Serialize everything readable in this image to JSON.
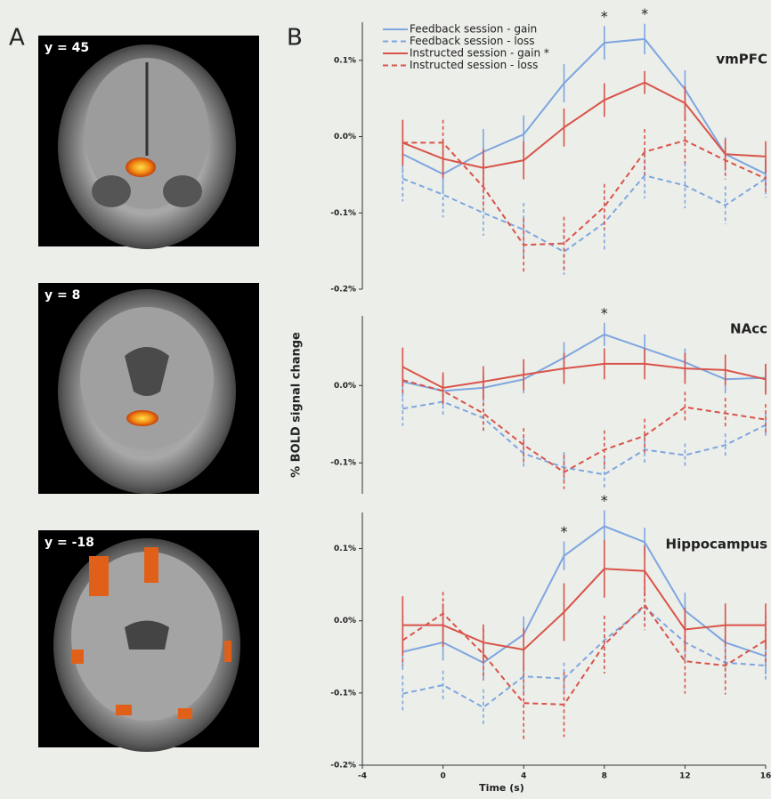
{
  "panel_labels": [
    "A",
    "B"
  ],
  "images": [
    {
      "label": "y = 45"
    },
    {
      "label": "y = 8"
    },
    {
      "label": "y = -18"
    }
  ],
  "chart_data": [
    {
      "type": "line",
      "title": "vmPFC",
      "legend": true,
      "legend_position": "upper left",
      "xlim": [
        -4,
        16
      ],
      "ylim": [
        -0.2,
        0.15
      ],
      "yticks": [
        {
          "value": 0.1,
          "label": "0.1%"
        },
        {
          "value": 0,
          "label": "0.0%"
        },
        {
          "value": -0.1,
          "label": "-0.1%"
        },
        {
          "value": -0.2,
          "label": "-0.2%"
        }
      ],
      "x": [
        -2,
        0,
        2,
        4,
        6,
        8,
        10,
        12,
        14,
        16
      ],
      "series": [
        {
          "name": "Feedback session - gain",
          "color": "#7ea6e0",
          "dashed": false,
          "values": [
            -0.023,
            -0.049,
            -0.02,
            0.003,
            0.07,
            0.123,
            0.128,
            0.062,
            -0.023,
            -0.049
          ],
          "errors": [
            0.025,
            0.025,
            0.03,
            0.025,
            0.025,
            0.022,
            0.02,
            0.025,
            0.022,
            0.02
          ]
        },
        {
          "name": "Feedback session - loss",
          "color": "#7ea6e0",
          "dashed": true,
          "values": [
            -0.055,
            -0.076,
            -0.1,
            -0.122,
            -0.151,
            -0.113,
            -0.051,
            -0.064,
            -0.09,
            -0.055
          ],
          "errors": [
            0.03,
            0.03,
            0.03,
            0.035,
            0.03,
            0.035,
            0.03,
            0.03,
            0.025,
            0.025
          ]
        },
        {
          "name": "Instructed session - gain *",
          "color": "#d9534a",
          "dashed": false,
          "values": [
            -0.008,
            -0.029,
            -0.041,
            -0.031,
            0.012,
            0.048,
            0.071,
            0.044,
            -0.023,
            -0.026
          ],
          "errors": [
            0.03,
            0.025,
            0.025,
            0.025,
            0.025,
            0.022,
            0.015,
            0.022,
            0.02,
            0.02
          ]
        },
        {
          "name": "Instructed session - loss",
          "color": "#d9534a",
          "dashed": true,
          "values": [
            -0.008,
            -0.008,
            -0.066,
            -0.142,
            -0.14,
            -0.092,
            -0.02,
            -0.005,
            -0.031,
            -0.055
          ],
          "errors": [
            0.03,
            0.03,
            0.03,
            0.035,
            0.035,
            0.03,
            0.03,
            0.03,
            0.025,
            0.02
          ]
        }
      ],
      "annotations": [
        {
          "x": 8,
          "text": "*"
        },
        {
          "x": 10,
          "text": "*"
        }
      ]
    },
    {
      "type": "line",
      "title": "NAcc",
      "y_label": "% BOLD signal change",
      "xlim": [
        -4,
        16
      ],
      "ylim": [
        -0.14,
        0.09
      ],
      "yticks": [
        {
          "value": 0,
          "label": "0.0%"
        },
        {
          "value": -0.1,
          "label": "-0.1%"
        }
      ],
      "x": [
        -2,
        0,
        2,
        4,
        6,
        8,
        10,
        12,
        14,
        16
      ],
      "series": [
        {
          "color": "#7ea6e0",
          "dashed": false,
          "values": [
            0.005,
            -0.007,
            -0.003,
            0.008,
            0.036,
            0.066,
            0.048,
            0.03,
            0.008,
            0.01
          ],
          "errors": [
            0.02,
            0.018,
            0.018,
            0.018,
            0.02,
            0.015,
            0.018,
            0.018,
            0.018,
            0.018
          ]
        },
        {
          "color": "#7ea6e0",
          "dashed": true,
          "values": [
            -0.03,
            -0.021,
            -0.042,
            -0.088,
            -0.106,
            -0.115,
            -0.083,
            -0.09,
            -0.077,
            -0.051
          ],
          "errors": [
            0.022,
            0.02,
            0.02,
            0.02,
            0.02,
            0.02,
            0.02,
            0.015,
            0.015,
            0.015
          ]
        },
        {
          "color": "#d9534a",
          "dashed": false,
          "values": [
            0.024,
            -0.003,
            0.005,
            0.014,
            0.022,
            0.028,
            0.028,
            0.022,
            0.02,
            0.008
          ],
          "errors": [
            0.025,
            0.02,
            0.02,
            0.02,
            0.02,
            0.02,
            0.02,
            0.02,
            0.02,
            0.02
          ]
        },
        {
          "color": "#d9534a",
          "dashed": true,
          "values": [
            0.007,
            -0.007,
            -0.036,
            -0.077,
            -0.112,
            -0.083,
            -0.065,
            -0.028,
            -0.036,
            -0.044
          ],
          "errors": [
            0.02,
            0.02,
            0.022,
            0.022,
            0.022,
            0.025,
            0.022,
            0.02,
            0.02,
            0.02
          ]
        }
      ],
      "annotations": [
        {
          "x": 8,
          "text": "*"
        }
      ]
    },
    {
      "type": "line",
      "title": "Hippocampus",
      "x_label": "Time (s)",
      "xlim": [
        -4,
        16
      ],
      "ylim": [
        -0.2,
        0.15
      ],
      "xticks": [
        -4,
        0,
        4,
        8,
        12,
        16
      ],
      "yticks": [
        {
          "value": 0.1,
          "label": "0.1%"
        },
        {
          "value": 0,
          "label": "0.0%"
        },
        {
          "value": -0.1,
          "label": "-0.1%"
        },
        {
          "value": -0.2,
          "label": "-0.2%"
        }
      ],
      "x": [
        -2,
        0,
        2,
        4,
        6,
        8,
        10,
        12,
        14,
        16
      ],
      "series": [
        {
          "color": "#7ea6e0",
          "dashed": false,
          "values": [
            -0.043,
            -0.03,
            -0.058,
            -0.019,
            0.09,
            0.131,
            0.109,
            0.014,
            -0.03,
            -0.049
          ],
          "errors": [
            0.025,
            0.025,
            0.025,
            0.025,
            0.02,
            0.022,
            0.02,
            0.025,
            0.025,
            0.025
          ]
        },
        {
          "color": "#7ea6e0",
          "dashed": true,
          "values": [
            -0.101,
            -0.089,
            -0.12,
            -0.077,
            -0.08,
            -0.027,
            0.019,
            -0.03,
            -0.058,
            -0.062
          ],
          "errors": [
            0.025,
            0.02,
            0.025,
            0.025,
            0.022,
            0.025,
            0.02,
            0.025,
            0.02,
            0.02
          ]
        },
        {
          "color": "#d9534a",
          "dashed": false,
          "values": [
            -0.006,
            -0.006,
            -0.03,
            -0.04,
            0.012,
            0.072,
            0.069,
            -0.012,
            -0.006,
            -0.006
          ],
          "errors": [
            0.04,
            0.03,
            0.025,
            0.03,
            0.04,
            0.04,
            0.035,
            0.03,
            0.03,
            0.03
          ]
        },
        {
          "color": "#d9534a",
          "dashed": true,
          "values": [
            -0.027,
            0.01,
            -0.046,
            -0.114,
            -0.116,
            -0.033,
            0.022,
            -0.056,
            -0.062,
            -0.027
          ],
          "errors": [
            0.035,
            0.03,
            0.035,
            0.05,
            0.045,
            0.04,
            0.035,
            0.045,
            0.04,
            0.035
          ]
        }
      ],
      "annotations": [
        {
          "x": 6,
          "text": "*"
        },
        {
          "x": 8,
          "text": "*"
        }
      ]
    }
  ]
}
